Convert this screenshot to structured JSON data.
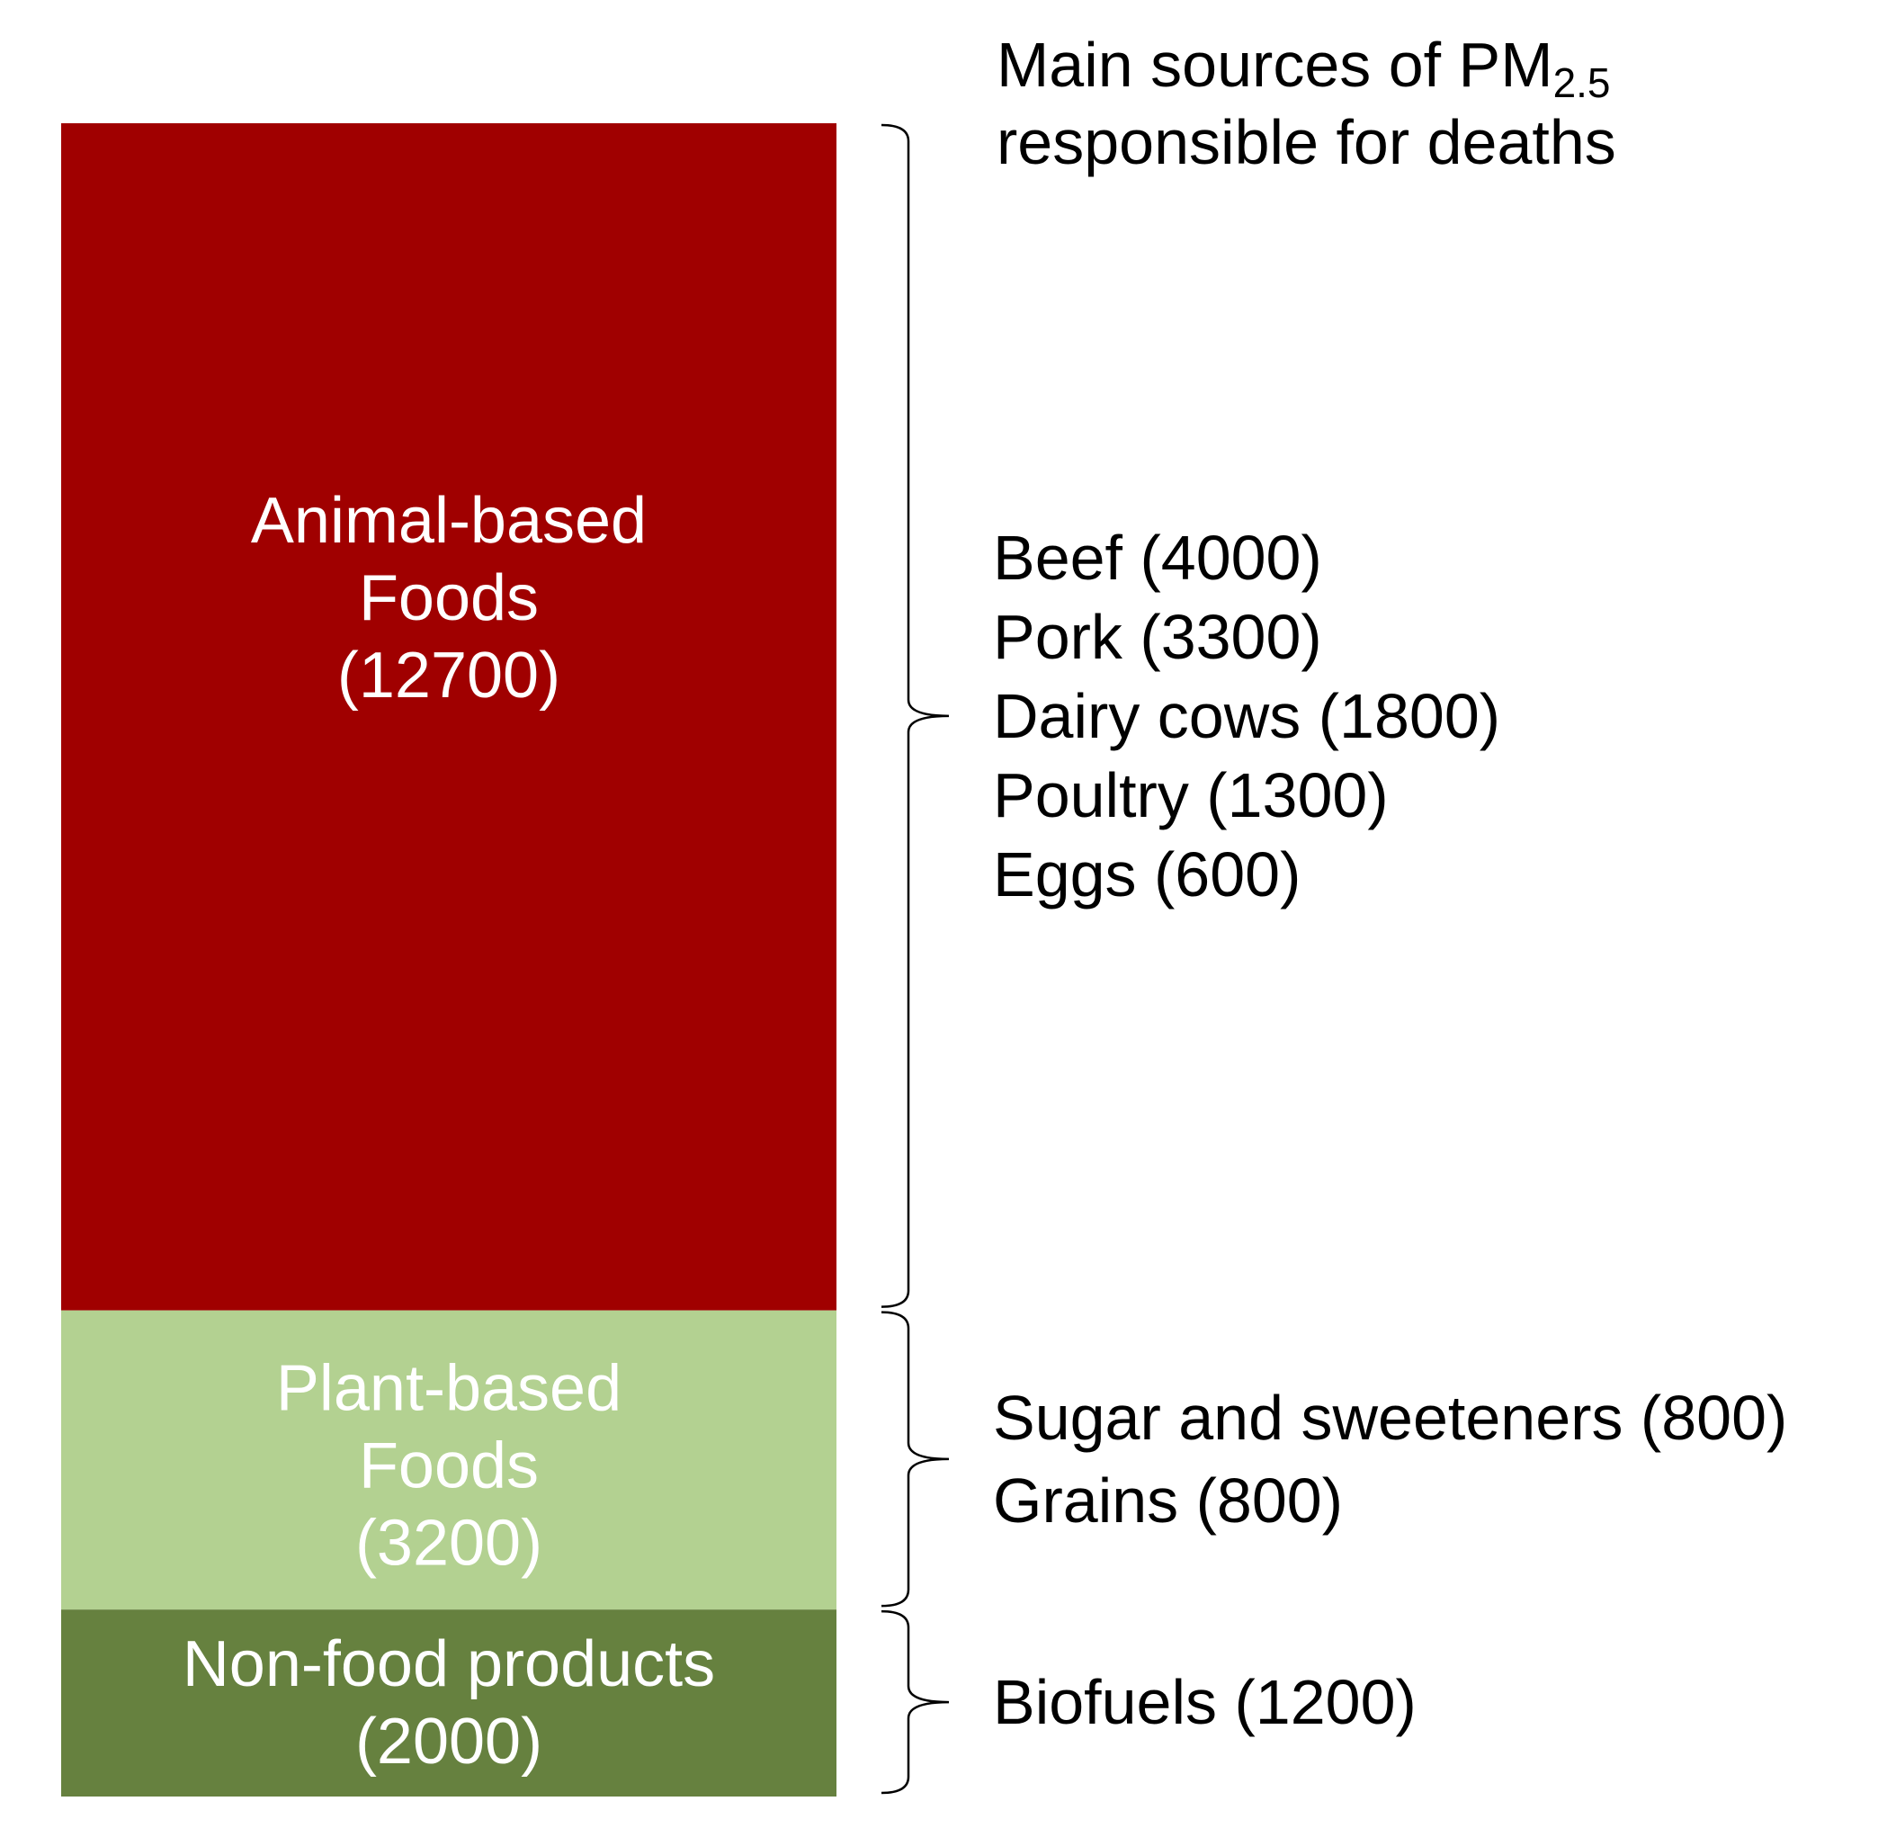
{
  "chart_data": {
    "type": "bar",
    "stacked": true,
    "heading": {
      "main": "Main sources of PM",
      "subscript": "2.5",
      "line2": "responsible for deaths"
    },
    "segments": [
      {
        "name": "Animal-based Foods",
        "label_lines": [
          "Animal-based",
          "Foods",
          "(12700)"
        ],
        "value": 12700,
        "color": "#a00000",
        "sources": [
          {
            "label": "Beef (4000)",
            "value": 4000
          },
          {
            "label": "Pork (3300)",
            "value": 3300
          },
          {
            "label": "Dairy cows (1800)",
            "value": 1800
          },
          {
            "label": "Poultry (1300)",
            "value": 1300
          },
          {
            "label": "Eggs (600)",
            "value": 600
          }
        ]
      },
      {
        "name": "Plant-based Foods",
        "label_lines": [
          "Plant-based",
          "Foods",
          "(3200)"
        ],
        "value": 3200,
        "color": "#b3d191",
        "sources": [
          {
            "label": "Sugar and sweeteners (800)",
            "value": 800
          },
          {
            "label": "Grains (800)",
            "value": 800
          }
        ]
      },
      {
        "name": "Non-food products",
        "label_lines": [
          "Non-food products",
          "(2000)"
        ],
        "value": 2000,
        "color": "#66813f",
        "sources": [
          {
            "label": "Biofuels (1200)",
            "value": 1200
          }
        ]
      }
    ]
  }
}
